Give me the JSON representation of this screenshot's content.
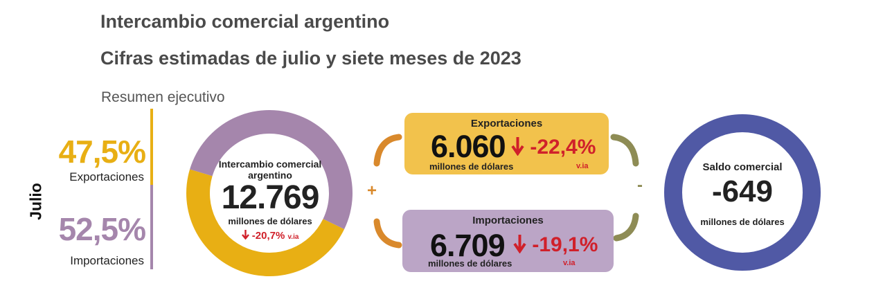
{
  "header": {
    "title": "Intercambio comercial argentino",
    "subtitle": "Cifras estimadas de julio y siete meses de 2023",
    "section": "Resumen ejecutivo"
  },
  "period_label": "Julio",
  "shares": {
    "exportaciones": {
      "value": "47,5%",
      "label": "Exportaciones"
    },
    "importaciones": {
      "value": "52,5%",
      "label": "Importaciones"
    }
  },
  "donut": {
    "title": "Intercambio comercial argentino",
    "value": "12.769",
    "unit": "millones de dólares",
    "variation": "-20,7%",
    "variation_suffix": "v.ia"
  },
  "exportaciones": {
    "title": "Exportaciones",
    "value": "6.060",
    "unit": "millones de dólares",
    "variation": "-22,4%",
    "variation_suffix": "v.ia"
  },
  "importaciones": {
    "title": "Importaciones",
    "value": "6.709",
    "unit": "millones de dólares",
    "variation": "-19,1%",
    "variation_suffix": "v.ia"
  },
  "operators": {
    "plus": "+",
    "minus": "-"
  },
  "saldo": {
    "title": "Saldo comercial",
    "value": "-649",
    "unit": "millones de dólares"
  },
  "icons": {
    "down_arrow": "arrow-down-icon"
  },
  "colors": {
    "exportaciones": "#E8AF14",
    "importaciones": "#A586AC",
    "saldo": "#5059A5",
    "negative": "#D0202A",
    "bracket_plus": "#D9892C",
    "bracket_minus": "#8E8C55"
  },
  "chart_data": {
    "type": "pie",
    "categories": [
      "Exportaciones",
      "Importaciones"
    ],
    "values": [
      47.5,
      52.5
    ],
    "values_musd": [
      6060,
      6709
    ],
    "total_musd": 12769,
    "balance_musd": -649
  }
}
